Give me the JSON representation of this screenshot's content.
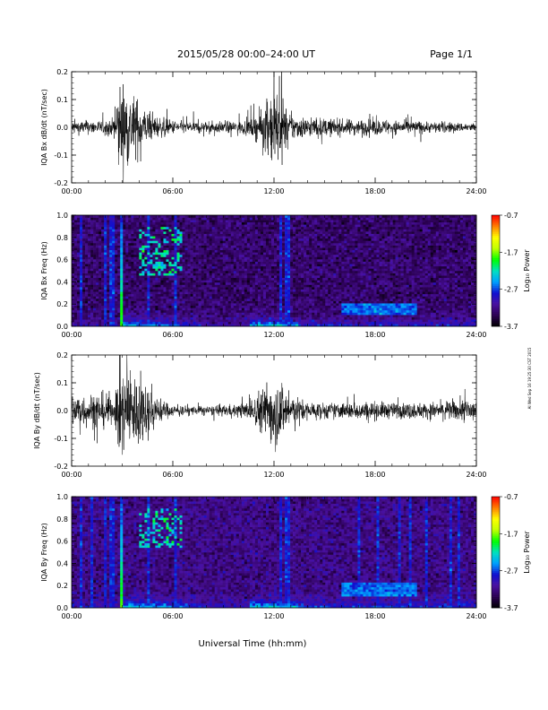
{
  "header": {
    "date_range": "2015/05/28  00:00–24:00 UT",
    "page_label": "Page 1/1"
  },
  "side_note": "AI Wed Sep 16 19:25:30 CST 2015",
  "x_axis": {
    "title": "Universal Time (hh:mm)",
    "ticks": [
      "00:00",
      "06:00",
      "12:00",
      "18:00",
      "24:00"
    ],
    "range_hours": [
      0,
      24
    ]
  },
  "colorbar": {
    "title": "Log₁₀ Power",
    "ticks": [
      "-0.7",
      "-1.7",
      "-2.7",
      "-3.7"
    ],
    "range": [
      -3.7,
      -0.7
    ],
    "colors": [
      "#000000",
      "#2a0050",
      "#4a10a0",
      "#1010d0",
      "#00a0ff",
      "#00e0c0",
      "#00ff00",
      "#c0ff00",
      "#ffff00",
      "#ff8000",
      "#ff0000"
    ]
  },
  "chart_data": [
    {
      "type": "line",
      "panel": "bx_waveform",
      "ylabel": "IQA Bx dB/dt (nT/sec)",
      "yticks": [
        "0.2",
        "0.1",
        "0.0",
        "-0.1",
        "-0.2"
      ],
      "ylim": [
        -0.2,
        0.2
      ],
      "xlim": [
        0,
        24
      ],
      "color": "#000000",
      "envelope": {
        "t": [
          0,
          1,
          2,
          2.5,
          2.8,
          3.0,
          3.3,
          3.6,
          4.0,
          4.5,
          5,
          6,
          7,
          8,
          9,
          10,
          10.5,
          11,
          11.5,
          12,
          12.5,
          13,
          13.5,
          14,
          15,
          16,
          17,
          18,
          19,
          20,
          21,
          22,
          23,
          24
        ],
        "amp": [
          0.03,
          0.03,
          0.03,
          0.04,
          0.2,
          0.2,
          0.18,
          0.15,
          0.12,
          0.07,
          0.05,
          0.03,
          0.025,
          0.025,
          0.025,
          0.03,
          0.035,
          0.06,
          0.1,
          0.2,
          0.12,
          0.06,
          0.05,
          0.045,
          0.04,
          0.035,
          0.035,
          0.035,
          0.03,
          0.03,
          0.025,
          0.025,
          0.02,
          0.02
        ]
      }
    },
    {
      "type": "heatmap",
      "panel": "bx_spectrogram",
      "ylabel": "IQA Bx Freq (Hz)",
      "yticks": [
        "1.0",
        "0.8",
        "0.6",
        "0.4",
        "0.2",
        "0.0"
      ],
      "ylim": [
        0,
        1.0
      ],
      "xlim": [
        0,
        24
      ],
      "features": {
        "background_power": -3.3,
        "low_freq_band_power": -2.4,
        "burst_time_hours": [
          2.9,
          3.1
        ],
        "burst_power": -1.8,
        "vertical_lines_hours": [
          0.5,
          2.0,
          2.3,
          2.5,
          4.5,
          6.2,
          12.4,
          12.8
        ],
        "pc1_patch": {
          "t": [
            4.0,
            6.5
          ],
          "f": [
            0.45,
            0.9
          ],
          "power": -2.2
        },
        "afternoon_band": {
          "t": [
            16.0,
            20.5
          ],
          "f": [
            0.1,
            0.2
          ],
          "power": -2.6
        }
      }
    },
    {
      "type": "line",
      "panel": "by_waveform",
      "ylabel": "IQA By dB/dt (nT/sec)",
      "yticks": [
        "0.2",
        "0.1",
        "0.0",
        "-0.1",
        "-0.2"
      ],
      "ylim": [
        -0.2,
        0.2
      ],
      "xlim": [
        0,
        24
      ],
      "color": "#000000",
      "envelope": {
        "t": [
          0,
          0.5,
          1,
          1.5,
          2,
          2.2,
          2.5,
          2.8,
          3.0,
          3.3,
          3.6,
          4.0,
          4.5,
          5,
          5.5,
          6,
          7,
          8,
          9,
          10,
          10.5,
          11,
          11.5,
          12,
          12.5,
          13,
          13.5,
          14,
          15,
          16,
          17,
          18,
          19,
          20,
          21,
          22,
          23,
          23.5,
          24
        ],
        "amp": [
          0.07,
          0.08,
          0.07,
          0.08,
          0.08,
          0.08,
          0.03,
          0.2,
          0.2,
          0.2,
          0.18,
          0.15,
          0.12,
          0.07,
          0.04,
          0.025,
          0.02,
          0.02,
          0.025,
          0.03,
          0.04,
          0.08,
          0.12,
          0.16,
          0.13,
          0.07,
          0.05,
          0.04,
          0.035,
          0.035,
          0.04,
          0.04,
          0.035,
          0.035,
          0.035,
          0.04,
          0.045,
          0.06,
          0.07
        ]
      }
    },
    {
      "type": "heatmap",
      "panel": "by_spectrogram",
      "ylabel": "IQA By Freq (Hz)",
      "yticks": [
        "1.0",
        "0.8",
        "0.6",
        "0.4",
        "0.2",
        "0.0"
      ],
      "ylim": [
        0,
        1.0
      ],
      "xlim": [
        0,
        24
      ],
      "features": {
        "background_power": -3.2,
        "low_freq_band_power": -2.3,
        "burst_time_hours": [
          2.9,
          3.1
        ],
        "burst_power": -1.8,
        "vertical_lines_hours": [
          0.5,
          1.2,
          2.0,
          2.3,
          2.5,
          4.5,
          6.2,
          12.4,
          12.8,
          17.0,
          18.2,
          19.5,
          20.1,
          21.0,
          22.5,
          23.0
        ],
        "pc1_patch": {
          "t": [
            4.0,
            6.5
          ],
          "f": [
            0.55,
            0.9
          ],
          "power": -2.2
        },
        "afternoon_band": {
          "t": [
            16.0,
            20.5
          ],
          "f": [
            0.1,
            0.22
          ],
          "power": -2.6
        }
      }
    }
  ]
}
